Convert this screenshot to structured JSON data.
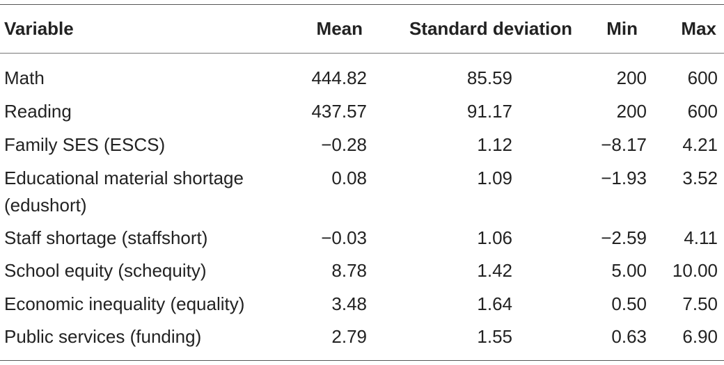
{
  "table": {
    "headers": {
      "variable": "Variable",
      "mean": "Mean",
      "sd": "Standard deviation",
      "min": "Min",
      "max": "Max"
    },
    "rows": [
      {
        "variable": "Math",
        "variable_line2": "",
        "mean": "444.82",
        "sd": "85.59",
        "min": "200",
        "max": "600"
      },
      {
        "variable": "Reading",
        "variable_line2": "",
        "mean": "437.57",
        "sd": "91.17",
        "min": "200",
        "max": "600"
      },
      {
        "variable": "Family SES (ESCS)",
        "variable_line2": "",
        "mean": "−0.28",
        "sd": "1.12",
        "min": "−8.17",
        "max": "4.21"
      },
      {
        "variable": "Educational material shortage",
        "variable_line2": "(edushort)",
        "mean": "0.08",
        "sd": "1.09",
        "min": "−1.93",
        "max": "3.52"
      },
      {
        "variable": "Staff shortage (staffshort)",
        "variable_line2": "",
        "mean": "−0.03",
        "sd": "1.06",
        "min": "−2.59",
        "max": "4.11"
      },
      {
        "variable": "School equity (schequity)",
        "variable_line2": "",
        "mean": "8.78",
        "sd": "1.42",
        "min": "5.00",
        "max": "10.00"
      },
      {
        "variable": "Economic inequality (equality)",
        "variable_line2": "",
        "mean": "3.48",
        "sd": "1.64",
        "min": "0.50",
        "max": "7.50"
      },
      {
        "variable": "Public services (funding)",
        "variable_line2": "",
        "mean": "2.79",
        "sd": "1.55",
        "min": "0.63",
        "max": "6.90"
      }
    ]
  }
}
